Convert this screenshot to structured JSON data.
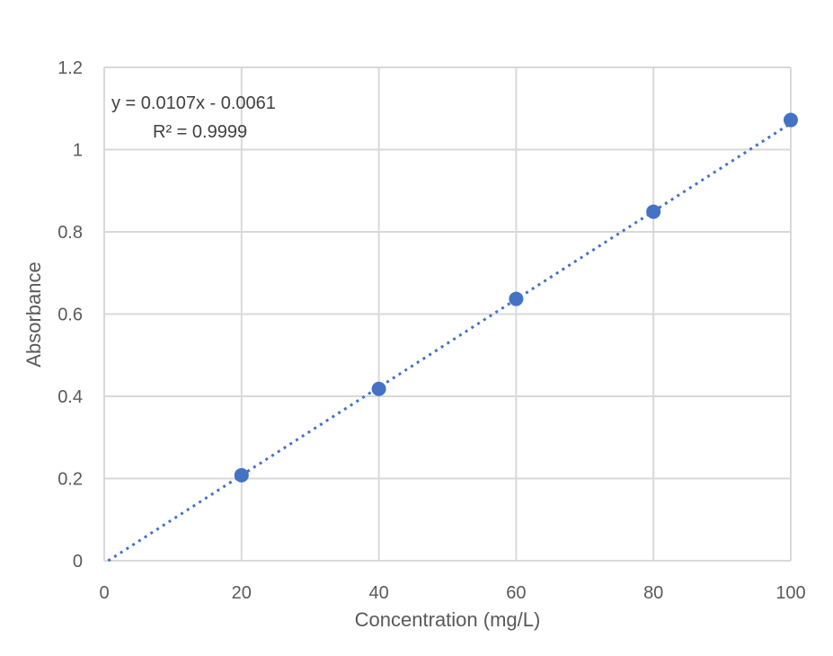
{
  "chart_data": {
    "type": "scatter",
    "title": "",
    "xlabel": "Concentration (mg/L)",
    "ylabel": "Absorbance",
    "xlim": [
      0,
      100
    ],
    "ylim": [
      0,
      1.2
    ],
    "x_ticks": [
      0,
      20,
      40,
      60,
      80,
      100
    ],
    "y_ticks": [
      0,
      0.2,
      0.4,
      0.6,
      0.8,
      1,
      1.2
    ],
    "x_tick_labels": [
      "0",
      "20",
      "40",
      "60",
      "80",
      "100"
    ],
    "y_tick_labels": [
      "0",
      "0.2",
      "0.4",
      "0.6",
      "0.8",
      "1",
      "1.2"
    ],
    "grid": true,
    "legend": "none",
    "series": [
      {
        "x": [
          20,
          40,
          60,
          80,
          100
        ],
        "y": [
          0.208,
          0.418,
          0.637,
          0.849,
          1.072
        ],
        "color": "#4472C4"
      }
    ],
    "trendline": {
      "type": "linear",
      "slope": 0.0107,
      "intercept": -0.0061,
      "style": "dotted",
      "color": "#4472C4",
      "equation": "y = 0.0107x - 0.0061",
      "r_squared": "R² = 0.9999"
    }
  }
}
